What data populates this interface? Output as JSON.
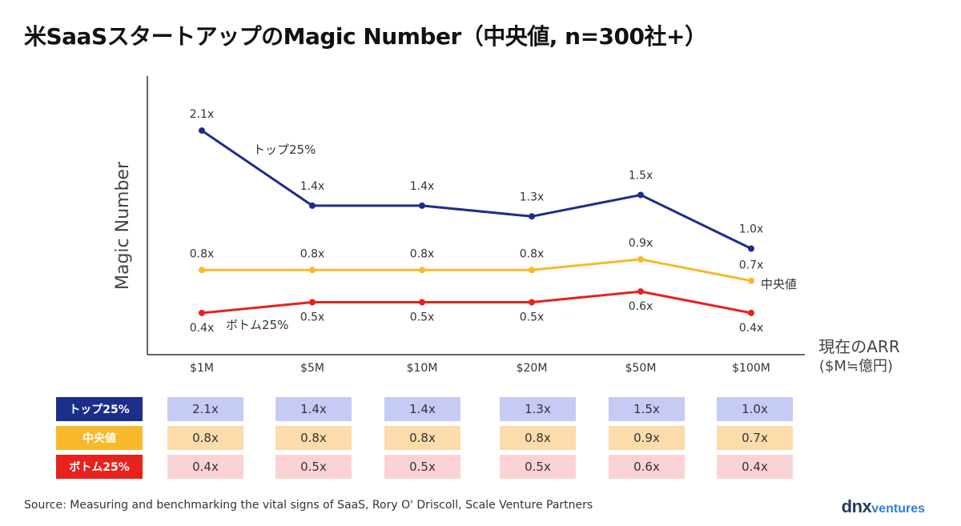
{
  "title": "米SaaSスタートアップのMagic Number（中央値, n=300社+）",
  "source": "Source: Measuring and benchmarking the vital signs of SaaS, Rory O' Driscoll, Scale Venture Partners",
  "logo": {
    "main": "dnx",
    "sub": "ventures"
  },
  "chart_data": {
    "type": "line",
    "title": "米SaaSスタートアップのMagic Number（中央値, n=300社+）",
    "xlabel": [
      "現在のARR",
      "($M≒億円)"
    ],
    "ylabel": "Magic Number",
    "categories": [
      "$1M",
      "$5M",
      "$10M",
      "$20M",
      "$50M",
      "$100M"
    ],
    "ylim": [
      0,
      2.3
    ],
    "grid": false,
    "series": [
      {
        "name": "トップ25%",
        "color": "#1c2e8c",
        "values": [
          2.1,
          1.4,
          1.4,
          1.3,
          1.5,
          1.0
        ],
        "labels": [
          "2.1x",
          "1.4x",
          "1.4x",
          "1.3x",
          "1.5x",
          "1.0x"
        ]
      },
      {
        "name": "中央値",
        "color": "#f7b92b",
        "values": [
          0.8,
          0.8,
          0.8,
          0.8,
          0.9,
          0.7
        ],
        "labels": [
          "0.8x",
          "0.8x",
          "0.8x",
          "0.8x",
          "0.9x",
          "0.7x"
        ]
      },
      {
        "name": "ボトム25%",
        "color": "#e8211c",
        "values": [
          0.4,
          0.5,
          0.5,
          0.5,
          0.6,
          0.4
        ],
        "labels": [
          "0.4x",
          "0.5x",
          "0.5x",
          "0.5x",
          "0.6x",
          "0.4x"
        ]
      }
    ]
  },
  "table": {
    "rows": [
      {
        "label": "トップ25%",
        "label_color": "#1c2e8c",
        "cell_color": "#c5cbf5",
        "values": [
          "2.1x",
          "1.4x",
          "1.4x",
          "1.3x",
          "1.5x",
          "1.0x"
        ]
      },
      {
        "label": "中央値",
        "label_color": "#f7b92b",
        "cell_color": "#fbdcaa",
        "values": [
          "0.8x",
          "0.8x",
          "0.8x",
          "0.8x",
          "0.9x",
          "0.7x"
        ]
      },
      {
        "label": "ボトム25%",
        "label_color": "#e8211c",
        "cell_color": "#fbd3d6",
        "values": [
          "0.4x",
          "0.5x",
          "0.5x",
          "0.5x",
          "0.6x",
          "0.4x"
        ]
      }
    ]
  }
}
